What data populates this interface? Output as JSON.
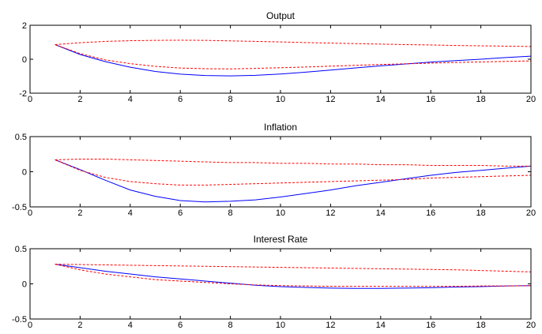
{
  "chart_data": [
    {
      "type": "line",
      "title": "Output",
      "xlim": [
        0,
        20
      ],
      "ylim": [
        -2,
        2
      ],
      "xticks": [
        0,
        2,
        4,
        6,
        8,
        10,
        12,
        14,
        16,
        18,
        20
      ],
      "yticks": [
        -2,
        0,
        2
      ],
      "x": [
        1,
        2,
        3,
        4,
        5,
        6,
        7,
        8,
        9,
        10,
        11,
        12,
        13,
        14,
        15,
        16,
        17,
        18,
        19,
        20
      ],
      "series": [
        {
          "style": "solid",
          "color": "#0000ff",
          "values": [
            0.86,
            0.28,
            -0.14,
            -0.47,
            -0.72,
            -0.88,
            -0.96,
            -0.98,
            -0.95,
            -0.87,
            -0.76,
            -0.64,
            -0.51,
            -0.39,
            -0.28,
            -0.17,
            -0.08,
            0.0,
            0.1,
            0.18
          ]
        },
        {
          "style": "dashed",
          "color": "#ff0000",
          "values": [
            0.86,
            0.97,
            1.05,
            1.09,
            1.11,
            1.12,
            1.11,
            1.08,
            1.05,
            1.02,
            0.98,
            0.95,
            0.92,
            0.89,
            0.86,
            0.84,
            0.81,
            0.79,
            0.77,
            0.75
          ]
        },
        {
          "style": "dashed",
          "color": "#ff0000",
          "values": [
            0.86,
            0.33,
            -0.04,
            -0.26,
            -0.42,
            -0.52,
            -0.56,
            -0.57,
            -0.54,
            -0.5,
            -0.46,
            -0.41,
            -0.36,
            -0.31,
            -0.27,
            -0.23,
            -0.19,
            -0.16,
            -0.13,
            -0.1
          ]
        }
      ]
    },
    {
      "type": "line",
      "title": "Inflation",
      "xlim": [
        0,
        20
      ],
      "ylim": [
        -0.5,
        0.5
      ],
      "xticks": [
        0,
        2,
        4,
        6,
        8,
        10,
        12,
        14,
        16,
        18,
        20
      ],
      "yticks": [
        -0.5,
        0,
        0.5
      ],
      "x": [
        1,
        2,
        3,
        4,
        5,
        6,
        7,
        8,
        9,
        10,
        11,
        12,
        13,
        14,
        15,
        16,
        17,
        18,
        19,
        20
      ],
      "series": [
        {
          "style": "solid",
          "color": "#0000ff",
          "values": [
            0.17,
            0.03,
            -0.12,
            -0.26,
            -0.35,
            -0.41,
            -0.43,
            -0.42,
            -0.4,
            -0.36,
            -0.31,
            -0.26,
            -0.2,
            -0.15,
            -0.1,
            -0.05,
            -0.01,
            0.02,
            0.05,
            0.08
          ]
        },
        {
          "style": "dashed",
          "color": "#ff0000",
          "values": [
            0.17,
            0.18,
            0.18,
            0.17,
            0.16,
            0.15,
            0.14,
            0.13,
            0.13,
            0.12,
            0.12,
            0.11,
            0.11,
            0.1,
            0.1,
            0.09,
            0.09,
            0.09,
            0.08,
            0.08
          ]
        },
        {
          "style": "dashed",
          "color": "#ff0000",
          "values": [
            0.17,
            0.02,
            -0.08,
            -0.14,
            -0.17,
            -0.19,
            -0.19,
            -0.18,
            -0.17,
            -0.16,
            -0.15,
            -0.14,
            -0.13,
            -0.12,
            -0.11,
            -0.09,
            -0.08,
            -0.07,
            -0.06,
            -0.05
          ]
        }
      ]
    },
    {
      "type": "line",
      "title": "Interest Rate",
      "xlim": [
        0,
        20
      ],
      "ylim": [
        -0.5,
        0.5
      ],
      "xticks": [
        0,
        2,
        4,
        6,
        8,
        10,
        12,
        14,
        16,
        18,
        20
      ],
      "yticks": [
        -0.5,
        0,
        0.5
      ],
      "x": [
        1,
        2,
        3,
        4,
        5,
        6,
        7,
        8,
        9,
        10,
        11,
        12,
        13,
        14,
        15,
        16,
        17,
        18,
        19,
        20
      ],
      "series": [
        {
          "style": "solid",
          "color": "#0000ff",
          "values": [
            0.28,
            0.23,
            0.18,
            0.14,
            0.1,
            0.07,
            0.04,
            0.01,
            -0.02,
            -0.04,
            -0.05,
            -0.06,
            -0.065,
            -0.065,
            -0.06,
            -0.055,
            -0.045,
            -0.04,
            -0.03,
            -0.025
          ]
        },
        {
          "style": "dashed",
          "color": "#ff0000",
          "values": [
            0.28,
            0.275,
            0.27,
            0.265,
            0.26,
            0.255,
            0.25,
            0.245,
            0.24,
            0.235,
            0.23,
            0.225,
            0.22,
            0.215,
            0.21,
            0.205,
            0.2,
            0.19,
            0.18,
            0.17
          ]
        },
        {
          "style": "dashed",
          "color": "#ff0000",
          "values": [
            0.28,
            0.2,
            0.14,
            0.1,
            0.06,
            0.04,
            0.02,
            0.0,
            -0.015,
            -0.025,
            -0.03,
            -0.035,
            -0.035,
            -0.035,
            -0.035,
            -0.035,
            -0.035,
            -0.03,
            -0.03,
            -0.025
          ]
        }
      ]
    }
  ]
}
